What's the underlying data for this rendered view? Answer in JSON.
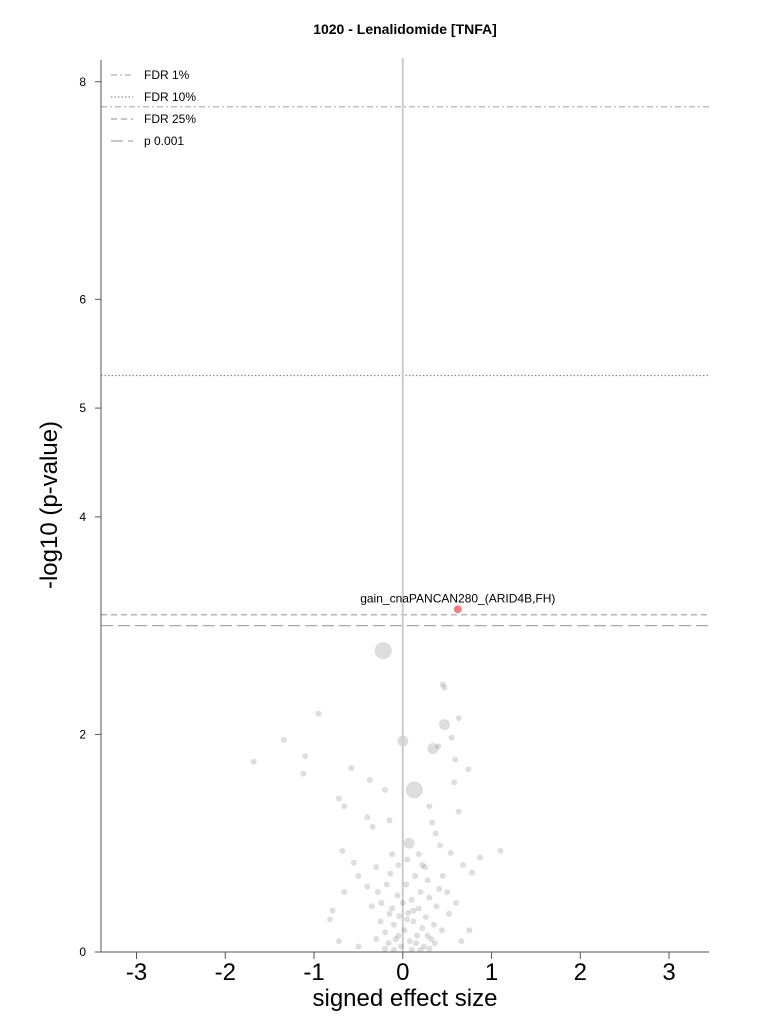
{
  "chart_data": {
    "type": "scatter",
    "title": "1020 - Lenalidomide [TNFA]",
    "xlabel": "signed effect size",
    "ylabel": "-log10 (p-value)",
    "xlim": [
      -3.4,
      3.45
    ],
    "ylim": [
      0,
      8.2
    ],
    "xticks": [
      -3,
      -2,
      -1,
      0,
      1,
      2,
      3
    ],
    "xtick_labels": [
      "-3",
      "-2",
      "-1",
      "0",
      "1",
      "2",
      "3"
    ],
    "yticks": [
      0,
      2,
      4,
      5,
      6,
      8
    ],
    "ytick_labels": [
      "0",
      "2",
      "4",
      "5",
      "6",
      "8"
    ],
    "grid": false,
    "legend_position": "top-left",
    "thresholds": [
      {
        "name": "FDR 1%",
        "y": 7.77,
        "style": "dashdot",
        "color": "#b5b5b5"
      },
      {
        "name": "FDR 10%",
        "y": 5.3,
        "style": "dotted",
        "color": "#8c8c8c"
      },
      {
        "name": "FDR 25%",
        "y": 3.1,
        "style": "dashed",
        "color": "#a8a8a8"
      },
      {
        "name": "p 0.001",
        "y": 3.0,
        "style": "longdash",
        "color": "#a8a8a8"
      }
    ],
    "zero_line_color": "#cccccc",
    "highlight_color": "#f08080",
    "point_color": "#000000",
    "highlight": {
      "label": "gain_cnaPANCAN280_(ARID4B,FH)",
      "x": 0.62,
      "y": 3.15
    },
    "points": [
      {
        "x": -0.22,
        "y": 2.77,
        "size": "large"
      },
      {
        "x": 0.13,
        "y": 1.49,
        "size": "large"
      },
      {
        "x": 0.0,
        "y": 1.94,
        "size": "medium"
      },
      {
        "x": 0.47,
        "y": 2.09,
        "size": "medium"
      },
      {
        "x": 0.07,
        "y": 1.0,
        "size": "medium"
      },
      {
        "x": 0.34,
        "y": 1.87,
        "size": "medium"
      },
      {
        "x": 0.45,
        "y": 2.46,
        "size": "small"
      },
      {
        "x": 0.47,
        "y": 2.43,
        "size": "small"
      },
      {
        "x": 0.63,
        "y": 2.15,
        "size": "small"
      },
      {
        "x": 0.55,
        "y": 1.97,
        "size": "small"
      },
      {
        "x": 0.58,
        "y": 1.56,
        "size": "small"
      },
      {
        "x": 0.59,
        "y": 1.77,
        "size": "small"
      },
      {
        "x": 0.74,
        "y": 1.68,
        "size": "small"
      },
      {
        "x": 0.4,
        "y": 1.89,
        "size": "small"
      },
      {
        "x": -0.95,
        "y": 2.19,
        "size": "small"
      },
      {
        "x": -1.34,
        "y": 1.95,
        "size": "small"
      },
      {
        "x": -1.68,
        "y": 1.75,
        "size": "small"
      },
      {
        "x": -1.1,
        "y": 1.8,
        "size": "small"
      },
      {
        "x": -1.12,
        "y": 1.64,
        "size": "small"
      },
      {
        "x": -0.58,
        "y": 1.69,
        "size": "small"
      },
      {
        "x": -0.37,
        "y": 1.58,
        "size": "small"
      },
      {
        "x": -0.2,
        "y": 1.49,
        "size": "small"
      },
      {
        "x": -0.72,
        "y": 1.41,
        "size": "small"
      },
      {
        "x": -0.66,
        "y": 1.34,
        "size": "small"
      },
      {
        "x": -0.4,
        "y": 1.24,
        "size": "small"
      },
      {
        "x": -0.15,
        "y": 1.21,
        "size": "small"
      },
      {
        "x": -0.34,
        "y": 1.15,
        "size": "small"
      },
      {
        "x": 0.3,
        "y": 1.34,
        "size": "small"
      },
      {
        "x": 0.63,
        "y": 1.29,
        "size": "small"
      },
      {
        "x": 0.33,
        "y": 1.19,
        "size": "small"
      },
      {
        "x": 0.37,
        "y": 1.09,
        "size": "small"
      },
      {
        "x": 0.42,
        "y": 0.98,
        "size": "small"
      },
      {
        "x": 0.54,
        "y": 0.91,
        "size": "small"
      },
      {
        "x": 0.87,
        "y": 0.87,
        "size": "small"
      },
      {
        "x": 1.1,
        "y": 0.93,
        "size": "small"
      },
      {
        "x": 0.78,
        "y": 0.73,
        "size": "small"
      },
      {
        "x": 0.68,
        "y": 0.8,
        "size": "small"
      },
      {
        "x": -0.68,
        "y": 0.93,
        "size": "small"
      },
      {
        "x": -0.55,
        "y": 0.82,
        "size": "small"
      },
      {
        "x": -0.5,
        "y": 0.7,
        "size": "small"
      },
      {
        "x": -0.66,
        "y": 0.55,
        "size": "small"
      },
      {
        "x": -0.79,
        "y": 0.38,
        "size": "small"
      },
      {
        "x": -0.82,
        "y": 0.3,
        "size": "small"
      },
      {
        "x": -0.4,
        "y": 0.6,
        "size": "small"
      },
      {
        "x": -0.3,
        "y": 0.78,
        "size": "small"
      },
      {
        "x": -0.12,
        "y": 0.9,
        "size": "small"
      },
      {
        "x": 0.22,
        "y": 0.8,
        "size": "small"
      },
      {
        "x": 0.28,
        "y": 0.66,
        "size": "small"
      },
      {
        "x": 0.45,
        "y": 0.7,
        "size": "small"
      },
      {
        "x": 0.5,
        "y": 0.55,
        "size": "small"
      },
      {
        "x": 0.6,
        "y": 0.45,
        "size": "small"
      },
      {
        "x": 0.52,
        "y": 0.35,
        "size": "small"
      },
      {
        "x": -0.72,
        "y": 0.1,
        "size": "small"
      },
      {
        "x": -0.5,
        "y": 0.05,
        "size": "small"
      },
      {
        "x": 0.75,
        "y": 0.2,
        "size": "small"
      },
      {
        "x": 0.66,
        "y": 0.1,
        "size": "small"
      },
      {
        "x": -0.25,
        "y": 0.28,
        "size": "small"
      },
      {
        "x": -0.2,
        "y": 0.18,
        "size": "small"
      },
      {
        "x": -0.16,
        "y": 0.08,
        "size": "small"
      },
      {
        "x": -0.12,
        "y": 0.4,
        "size": "small"
      },
      {
        "x": -0.1,
        "y": 0.25,
        "size": "small"
      },
      {
        "x": -0.08,
        "y": 0.12,
        "size": "small"
      },
      {
        "x": -0.06,
        "y": 0.52,
        "size": "small"
      },
      {
        "x": -0.04,
        "y": 0.33,
        "size": "small"
      },
      {
        "x": -0.02,
        "y": 0.05,
        "size": "small"
      },
      {
        "x": 0.0,
        "y": 0.45,
        "size": "small"
      },
      {
        "x": 0.02,
        "y": 0.2,
        "size": "small"
      },
      {
        "x": 0.04,
        "y": 0.62,
        "size": "small"
      },
      {
        "x": 0.06,
        "y": 0.36,
        "size": "small"
      },
      {
        "x": 0.08,
        "y": 0.1,
        "size": "small"
      },
      {
        "x": 0.1,
        "y": 0.48,
        "size": "small"
      },
      {
        "x": 0.12,
        "y": 0.28,
        "size": "small"
      },
      {
        "x": 0.14,
        "y": 0.7,
        "size": "small"
      },
      {
        "x": 0.16,
        "y": 0.15,
        "size": "small"
      },
      {
        "x": 0.18,
        "y": 0.4,
        "size": "small"
      },
      {
        "x": 0.2,
        "y": 0.55,
        "size": "small"
      },
      {
        "x": 0.22,
        "y": 0.22,
        "size": "small"
      },
      {
        "x": 0.24,
        "y": 0.05,
        "size": "small"
      },
      {
        "x": 0.26,
        "y": 0.32,
        "size": "small"
      },
      {
        "x": 0.3,
        "y": 0.5,
        "size": "small"
      },
      {
        "x": 0.32,
        "y": 0.12,
        "size": "small"
      },
      {
        "x": 0.35,
        "y": 0.25,
        "size": "small"
      },
      {
        "x": 0.38,
        "y": 0.42,
        "size": "small"
      },
      {
        "x": 0.41,
        "y": 0.58,
        "size": "small"
      },
      {
        "x": 0.44,
        "y": 0.2,
        "size": "small"
      },
      {
        "x": -0.3,
        "y": 0.12,
        "size": "small"
      },
      {
        "x": -0.35,
        "y": 0.42,
        "size": "small"
      },
      {
        "x": -0.28,
        "y": 0.55,
        "size": "small"
      },
      {
        "x": -0.18,
        "y": 0.62,
        "size": "small"
      },
      {
        "x": -0.14,
        "y": 0.72,
        "size": "small"
      },
      {
        "x": 0.05,
        "y": 0.85,
        "size": "small"
      },
      {
        "x": 0.18,
        "y": 0.9,
        "size": "small"
      },
      {
        "x": 0.25,
        "y": 0.78,
        "size": "small"
      },
      {
        "x": -0.05,
        "y": 0.8,
        "size": "small"
      },
      {
        "x": 0.1,
        "y": 0.02,
        "size": "small"
      },
      {
        "x": -0.1,
        "y": 0.02,
        "size": "small"
      },
      {
        "x": 0.2,
        "y": 0.02,
        "size": "small"
      },
      {
        "x": -0.2,
        "y": 0.03,
        "size": "small"
      },
      {
        "x": 0.3,
        "y": 0.03,
        "size": "small"
      },
      {
        "x": 0.15,
        "y": 0.08,
        "size": "small"
      },
      {
        "x": -0.05,
        "y": 0.15,
        "size": "small"
      },
      {
        "x": 0.05,
        "y": 0.3,
        "size": "small"
      },
      {
        "x": 0.12,
        "y": 0.38,
        "size": "small"
      },
      {
        "x": -0.15,
        "y": 0.35,
        "size": "small"
      },
      {
        "x": 0.28,
        "y": 0.15,
        "size": "small"
      },
      {
        "x": 0.36,
        "y": 0.08,
        "size": "small"
      },
      {
        "x": -0.24,
        "y": 0.45,
        "size": "small"
      }
    ]
  }
}
